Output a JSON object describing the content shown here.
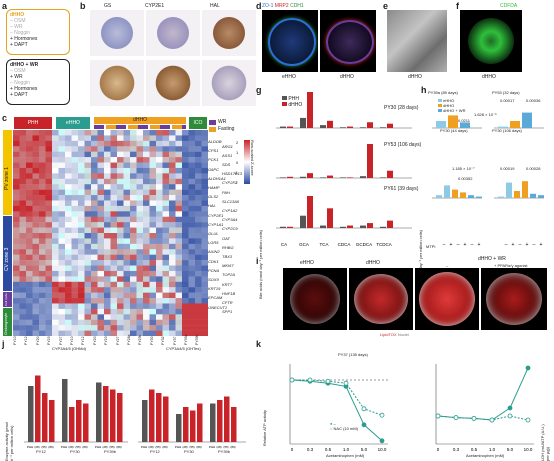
{
  "panel_labels": [
    "a",
    "b",
    "c",
    "d",
    "e",
    "f",
    "g",
    "h",
    "i",
    "j",
    "k"
  ],
  "panel_a": {
    "box1": {
      "name": "dHHO",
      "items": [
        "– OSM",
        "– WR",
        "– Noggin",
        "+ Hormones",
        "+ DAPT"
      ]
    },
    "box2": {
      "name": "dHHO + WR",
      "items": [
        "– OSM",
        "+ WR",
        "– Noggin",
        "+ Hormones",
        "+ DAPT"
      ]
    }
  },
  "panel_b": {
    "headers": [
      "GS",
      "CYP2E1",
      "HAL"
    ]
  },
  "panel_c": {
    "col_headers": [
      "PHH",
      "eHHO",
      "dHHO",
      "ICO"
    ],
    "row_groups": [
      "PV zone 1",
      "CV zone 3",
      "Cell cycle",
      "Cholangiocyte"
    ],
    "legend": [
      "WR",
      "Fasting"
    ],
    "scale_title": "Row-scaled Z-score",
    "scale_ticks": [
      "2",
      "1",
      "0",
      "-1",
      "-2"
    ],
    "genes": [
      "ALDOB",
      "ARG1",
      "CPS1",
      "ASS1",
      "PCK1",
      "SDS",
      "G6PC",
      "HSD17B13",
      "ALDH1A1",
      "CYP2F1",
      "HAMP",
      "PAH",
      "GLS2",
      "SLC13A5",
      "HAL",
      "CYP1A2",
      "CYP2E1",
      "CYP3A4",
      "CYP1A1",
      "CYP2C9",
      "GLUL",
      "OAT",
      "LGR5",
      "RHBG",
      "AXIN2",
      "TBX3",
      "CDK1",
      "MKI67",
      "PCNA",
      "TOP2A",
      "SOX9",
      "KRT7",
      "KRT19",
      "HNF1B",
      "EPCAM",
      "CFTR",
      "ONECUT1",
      "SPP1"
    ],
    "x_labels": [
      "PY10",
      "PY12",
      "PY20",
      "PY23",
      "PY27",
      "PY10",
      "PY12",
      "PY20",
      "PY23",
      "PY27",
      "PY28a",
      "PY29b",
      "PY30",
      "PY32",
      "PY37",
      "PY39a",
      "PY39b"
    ]
  },
  "panel_d": {
    "labels": [
      "ZO-1",
      "MRP2",
      "CDH1"
    ],
    "captions": [
      "eHHO",
      "dHHO"
    ]
  },
  "panel_e": {
    "caption": "dHHO"
  },
  "panel_f": {
    "label": "CDFDA",
    "caption": "dHHO"
  },
  "panel_g": {
    "ylabel": "Bile acids (nmol day⁻¹ per million cells)",
    "legend": [
      "PHH",
      "dHHO"
    ],
    "categories": [
      "CA",
      "GCA",
      "TCA",
      "CDCA",
      "GCDCA",
      "TCDCA"
    ],
    "subpanels": [
      "PY30 (28 days)",
      "PY53 (106 days)",
      "PY61 (39 days)"
    ]
  },
  "panel_h": {
    "ylabel": "Triglyceride (μg day⁻¹ per million cells)",
    "legend": [
      "eHHO",
      "dHHO",
      "dHHO + WR"
    ],
    "titles": [
      "PY39a (89 days)",
      "PY53 (32 days)",
      "PY30 (44 days)",
      "PY30 (106 days)"
    ],
    "pvalues": [
      "1.628 × 10⁻⁵",
      "0.0211",
      "0.00017",
      "0.00036",
      "1.185 × 10⁻⁷",
      "0.00352",
      "0.00019",
      "0.00028"
    ],
    "mtp_label": "MTPi",
    "mtp_ticks": [
      "–",
      "+",
      "–",
      "+",
      "–",
      "+"
    ]
  },
  "panel_i": {
    "captions": [
      "eHHO",
      "dHHO",
      "dHHO + WR"
    ],
    "subcaption": [
      "–",
      "+ PPARα/γ agonist"
    ],
    "stain": "LipidTOX",
    "nuclei": "Nuclei"
  },
  "panel_j": {
    "ylabel": "Enzyme activity (pmol h⁻¹ per million cells)",
    "titles": [
      "CYP3A4/5 (OHMd)",
      "CYP3A4/5 (OHTes)"
    ],
    "groups": [
      "PY12",
      "PY30",
      "PY39b",
      "PY12",
      "PY30",
      "PY39b"
    ],
    "sublabels": [
      "PHH",
      "(28)",
      "(55)",
      "(89)"
    ]
  },
  "panel_k": {
    "title": "PY37 (135 days)",
    "ylabel_left": "Relative ATP activity",
    "ylabel_right": "LDH (mU/ATP (A.U.) per μg))",
    "xlabel": "Acetaminophen (mM)",
    "xticks": [
      "0",
      "0.3",
      "0.5",
      "1.0",
      "5.0",
      "10.0"
    ],
    "legend": [
      "–",
      "NAC (10 mM)"
    ],
    "chart_data": {
      "type": "line",
      "x": [
        0,
        0.3,
        0.5,
        1.0,
        5.0,
        10.0
      ],
      "series": [
        {
          "name": "–",
          "values": [
            1.0,
            0.98,
            0.95,
            0.9,
            0.3,
            0.05
          ]
        },
        {
          "name": "NAC (10 mM)",
          "values": [
            1.0,
            1.0,
            0.98,
            0.95,
            0.55,
            0.45
          ]
        }
      ],
      "ylim": [
        0,
        1.25
      ]
    }
  },
  "colors": {
    "red": "#c9232a",
    "grey": "#555555",
    "orange": "#f0a020",
    "lightblue": "#8ecae6",
    "teal": "#2a9d8f",
    "yellow": "#f2c500",
    "purple": "#6a3d9a",
    "green": "#2e8b3a"
  }
}
